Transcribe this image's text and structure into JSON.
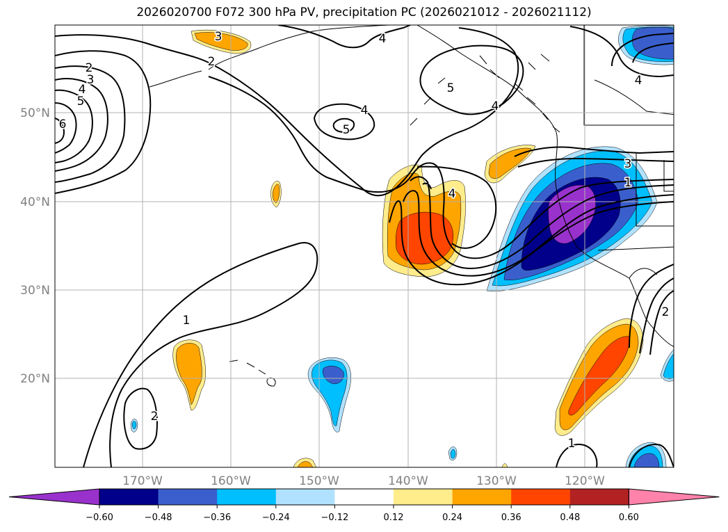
{
  "title": "2026020700 F072 300 hPa PV, precipitation PC (2026021012 - 2026021112)",
  "map": {
    "lat_labels": [
      "50°N",
      "40°N",
      "30°N",
      "20°N"
    ],
    "lon_labels": [
      "170°W",
      "160°W",
      "150°W",
      "140°W",
      "130°W",
      "120°W"
    ],
    "contour_labels": [
      {
        "name": "pv-label-2-nw",
        "text": "2"
      },
      {
        "name": "pv-label-3-nw",
        "text": "3"
      },
      {
        "name": "pv-label-4-nw",
        "text": "4"
      },
      {
        "name": "pv-label-5-nw",
        "text": "5"
      },
      {
        "name": "pv-label-6-nw",
        "text": "6"
      },
      {
        "name": "pv-label-3-aleutian",
        "text": "3"
      },
      {
        "name": "pv-label-2-aleutian",
        "text": "2"
      },
      {
        "name": "pv-label-4-north",
        "text": "4"
      },
      {
        "name": "pv-label-4-gulf",
        "text": "4"
      },
      {
        "name": "pv-label-5-gulf",
        "text": "5"
      },
      {
        "name": "pv-label-5-coast",
        "text": "5"
      },
      {
        "name": "pv-label-4-coast",
        "text": "4"
      },
      {
        "name": "pv-label-4-trough",
        "text": "4"
      },
      {
        "name": "pv-label-3-east",
        "text": "3"
      },
      {
        "name": "pv-label-1-east",
        "text": "1"
      },
      {
        "name": "pv-label-4-ne",
        "text": "4"
      },
      {
        "name": "pv-label-1-subtropical",
        "text": "1"
      },
      {
        "name": "pv-label-2-south",
        "text": "2"
      },
      {
        "name": "pv-label-1-south",
        "text": "1"
      },
      {
        "name": "pv-label-2-mexico",
        "text": "2"
      }
    ]
  },
  "colorbar": {
    "ticks": [
      "−0.60",
      "−0.48",
      "−0.36",
      "−0.24",
      "−0.12",
      "0.12",
      "0.24",
      "0.36",
      "0.48",
      "0.60"
    ],
    "colors": [
      "#9932cc",
      "#00008b",
      "#3a5fcd",
      "#00bfff",
      "#b0e2ff",
      "#ffffff",
      "#ffec8b",
      "#ffa500",
      "#ff4500",
      "#b22222",
      "#ff82ab"
    ]
  }
}
